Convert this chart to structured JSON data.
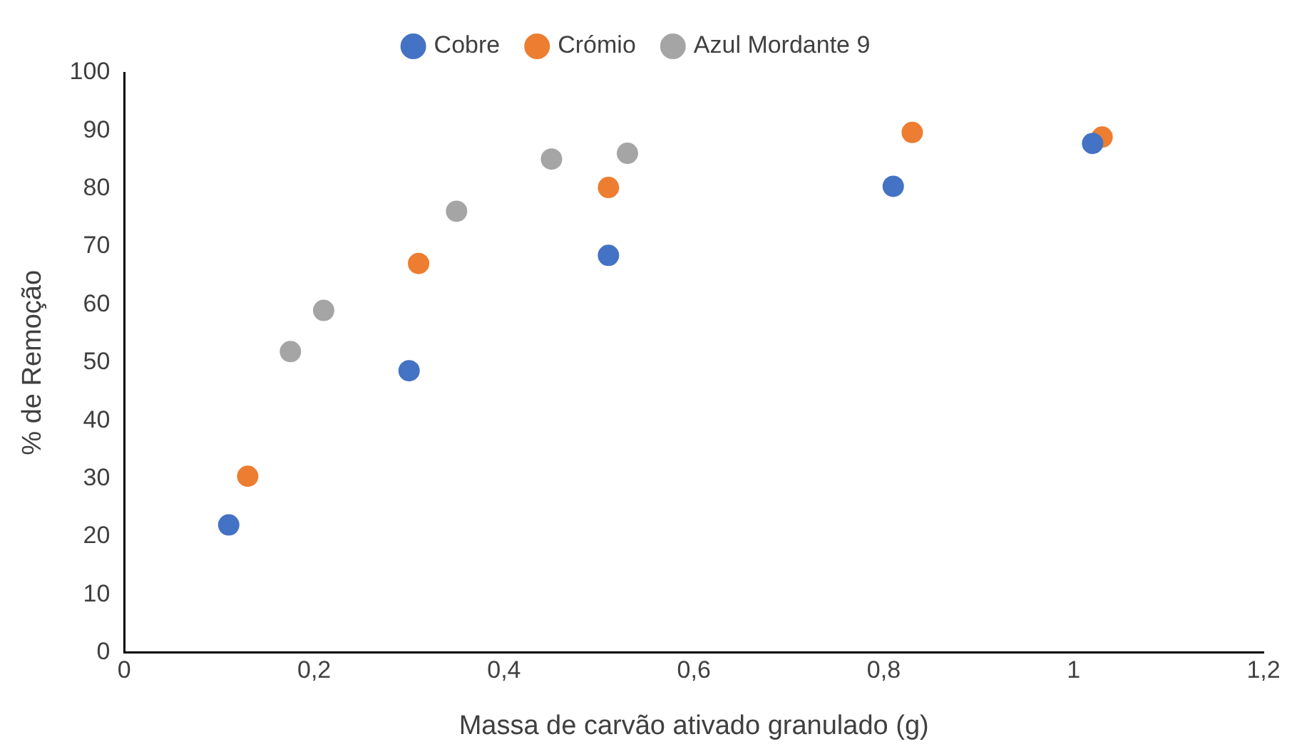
{
  "chart_data": {
    "type": "scatter",
    "xlabel": "Massa de carvão ativado granulado (g)",
    "ylabel": "% de Remoção",
    "xlim": [
      0,
      1.2
    ],
    "xticks": [
      0,
      {
        "value": 0.2,
        "label": "0,2"
      },
      {
        "value": 0.4,
        "label": "0,4"
      },
      {
        "value": 0.6,
        "label": "0,6"
      },
      {
        "value": 0.8,
        "label": "0,8"
      },
      1,
      {
        "value": 1.2,
        "label": "1,2"
      }
    ],
    "ylim": [
      0,
      100
    ],
    "yticks": [
      0,
      10,
      20,
      30,
      40,
      50,
      60,
      70,
      80,
      90,
      100
    ],
    "grid": false,
    "legend": "top",
    "marker": "circle",
    "series": [
      {
        "name": "Cobre",
        "color": "#4472c4",
        "x": [
          0.11,
          0.3,
          0.51,
          0.81,
          1.02
        ],
        "values": [
          22,
          48.6,
          68.5,
          80.4,
          87.8
        ]
      },
      {
        "name": "Crómio",
        "color": "#ed7d31",
        "x": [
          0.13,
          0.31,
          0.51,
          0.83,
          1.03
        ],
        "values": [
          30.4,
          67.1,
          80.2,
          89.7,
          88.9
        ]
      },
      {
        "name": "Azul Mordante 9",
        "color": "#a5a5a5",
        "x": [
          0.175,
          0.21,
          0.35,
          0.45,
          0.53
        ],
        "values": [
          51.9,
          59,
          76.1,
          85.1,
          86.1
        ]
      }
    ]
  }
}
